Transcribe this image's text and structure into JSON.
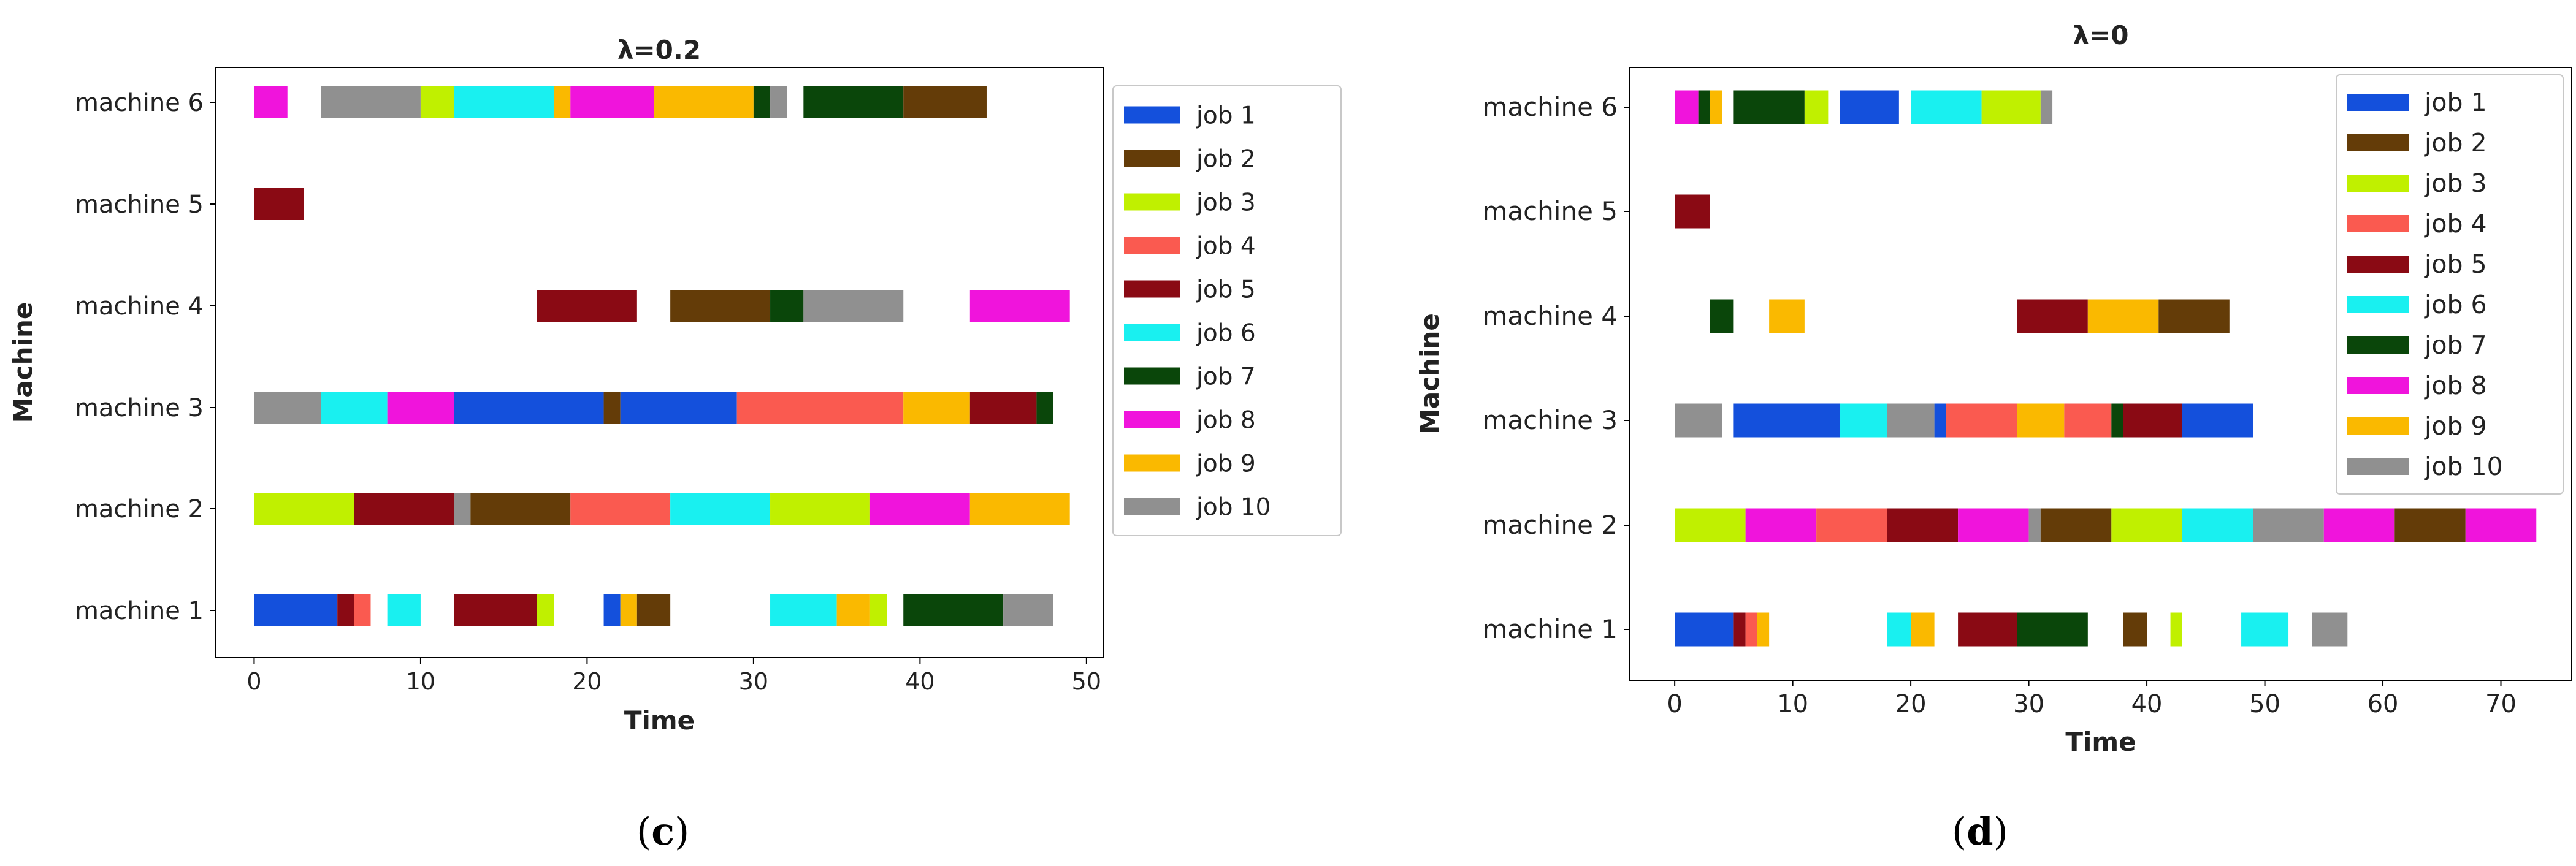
{
  "legend_entries": [
    "job 1",
    "job 2",
    "job 3",
    "job 4",
    "job 5",
    "job 6",
    "job 7",
    "job 8",
    "job 9",
    "job 10"
  ],
  "job_colors": {
    "job 1": "#1450dc",
    "job 2": "#643c08",
    "job 3": "#c0f000",
    "job 4": "#fa5a50",
    "job 5": "#8a0a14",
    "job 6": "#19f0f0",
    "job 7": "#0a460a",
    "job 8": "#f014dc",
    "job 9": "#fab900",
    "job 10": "#909090"
  },
  "captions": {
    "c": {
      "open": "(",
      "letter": "c",
      "close": ")"
    },
    "d": {
      "open": "(",
      "letter": "d",
      "close": ")"
    }
  },
  "chart_data": [
    {
      "type": "gantt",
      "title": "λ=0.2",
      "xlabel": "Time",
      "ylabel": "Machine",
      "xlim": [
        -2.3,
        51
      ],
      "xticks": [
        0,
        10,
        20,
        30,
        40,
        50
      ],
      "categories": [
        "machine 1",
        "machine 2",
        "machine 3",
        "machine 4",
        "machine 5",
        "machine 6"
      ],
      "legend_position": "outside-right",
      "bars": [
        {
          "machine": "machine 6",
          "job": "job 8",
          "start": 0,
          "end": 2
        },
        {
          "machine": "machine 6",
          "job": "job 10",
          "start": 4,
          "end": 10
        },
        {
          "machine": "machine 6",
          "job": "job 3",
          "start": 10,
          "end": 12
        },
        {
          "machine": "machine 6",
          "job": "job 6",
          "start": 12,
          "end": 18
        },
        {
          "machine": "machine 6",
          "job": "job 9",
          "start": 18,
          "end": 19
        },
        {
          "machine": "machine 6",
          "job": "job 8",
          "start": 19,
          "end": 24
        },
        {
          "machine": "machine 6",
          "job": "job 9",
          "start": 24,
          "end": 30
        },
        {
          "machine": "machine 6",
          "job": "job 7",
          "start": 30,
          "end": 31
        },
        {
          "machine": "machine 6",
          "job": "job 10",
          "start": 31,
          "end": 32
        },
        {
          "machine": "machine 6",
          "job": "job 7",
          "start": 33,
          "end": 39
        },
        {
          "machine": "machine 6",
          "job": "job 2",
          "start": 39,
          "end": 44
        },
        {
          "machine": "machine 5",
          "job": "job 5",
          "start": 0,
          "end": 3
        },
        {
          "machine": "machine 4",
          "job": "job 5",
          "start": 17,
          "end": 23
        },
        {
          "machine": "machine 4",
          "job": "job 2",
          "start": 25,
          "end": 31
        },
        {
          "machine": "machine 4",
          "job": "job 7",
          "start": 31,
          "end": 33
        },
        {
          "machine": "machine 4",
          "job": "job 10",
          "start": 33,
          "end": 39
        },
        {
          "machine": "machine 4",
          "job": "job 8",
          "start": 43,
          "end": 49
        },
        {
          "machine": "machine 3",
          "job": "job 10",
          "start": 0,
          "end": 4
        },
        {
          "machine": "machine 3",
          "job": "job 6",
          "start": 4,
          "end": 8
        },
        {
          "machine": "machine 3",
          "job": "job 8",
          "start": 8,
          "end": 12
        },
        {
          "machine": "machine 3",
          "job": "job 1",
          "start": 12,
          "end": 21
        },
        {
          "machine": "machine 3",
          "job": "job 2",
          "start": 21,
          "end": 22
        },
        {
          "machine": "machine 3",
          "job": "job 1",
          "start": 22,
          "end": 29
        },
        {
          "machine": "machine 3",
          "job": "job 4",
          "start": 29,
          "end": 39
        },
        {
          "machine": "machine 3",
          "job": "job 9",
          "start": 39,
          "end": 43
        },
        {
          "machine": "machine 3",
          "job": "job 5",
          "start": 43,
          "end": 47
        },
        {
          "machine": "machine 3",
          "job": "job 7",
          "start": 47,
          "end": 48
        },
        {
          "machine": "machine 2",
          "job": "job 3",
          "start": 0,
          "end": 6
        },
        {
          "machine": "machine 2",
          "job": "job 5",
          "start": 6,
          "end": 12
        },
        {
          "machine": "machine 2",
          "job": "job 10",
          "start": 12,
          "end": 13
        },
        {
          "machine": "machine 2",
          "job": "job 2",
          "start": 13,
          "end": 19
        },
        {
          "machine": "machine 2",
          "job": "job 4",
          "start": 19,
          "end": 25
        },
        {
          "machine": "machine 2",
          "job": "job 6",
          "start": 25,
          "end": 31
        },
        {
          "machine": "machine 2",
          "job": "job 3",
          "start": 31,
          "end": 37
        },
        {
          "machine": "machine 2",
          "job": "job 8",
          "start": 37,
          "end": 43
        },
        {
          "machine": "machine 2",
          "job": "job 9",
          "start": 43,
          "end": 49
        },
        {
          "machine": "machine 1",
          "job": "job 1",
          "start": 0,
          "end": 5
        },
        {
          "machine": "machine 1",
          "job": "job 5",
          "start": 5,
          "end": 6
        },
        {
          "machine": "machine 1",
          "job": "job 4",
          "start": 6,
          "end": 7
        },
        {
          "machine": "machine 1",
          "job": "job 6",
          "start": 8,
          "end": 10
        },
        {
          "machine": "machine 1",
          "job": "job 5",
          "start": 12,
          "end": 17
        },
        {
          "machine": "machine 1",
          "job": "job 3",
          "start": 17,
          "end": 18
        },
        {
          "machine": "machine 1",
          "job": "job 1",
          "start": 21,
          "end": 22
        },
        {
          "machine": "machine 1",
          "job": "job 9",
          "start": 22,
          "end": 23
        },
        {
          "machine": "machine 1",
          "job": "job 2",
          "start": 23,
          "end": 25
        },
        {
          "machine": "machine 1",
          "job": "job 6",
          "start": 31,
          "end": 35
        },
        {
          "machine": "machine 1",
          "job": "job 9",
          "start": 35,
          "end": 37
        },
        {
          "machine": "machine 1",
          "job": "job 3",
          "start": 37,
          "end": 38
        },
        {
          "machine": "machine 1",
          "job": "job 7",
          "start": 39,
          "end": 45
        },
        {
          "machine": "machine 1",
          "job": "job 10",
          "start": 45,
          "end": 48
        }
      ]
    },
    {
      "type": "gantt",
      "title": "λ=0",
      "xlabel": "Time",
      "ylabel": "Machine",
      "xlim": [
        -3.8,
        76
      ],
      "xticks": [
        0,
        10,
        20,
        30,
        40,
        50,
        60,
        70
      ],
      "categories": [
        "machine 1",
        "machine 2",
        "machine 3",
        "machine 4",
        "machine 5",
        "machine 6"
      ],
      "legend_position": "top-right",
      "bars": [
        {
          "machine": "machine 6",
          "job": "job 8",
          "start": 0,
          "end": 2
        },
        {
          "machine": "machine 6",
          "job": "job 7",
          "start": 2,
          "end": 3
        },
        {
          "machine": "machine 6",
          "job": "job 9",
          "start": 3,
          "end": 4
        },
        {
          "machine": "machine 6",
          "job": "job 7",
          "start": 5,
          "end": 11
        },
        {
          "machine": "machine 6",
          "job": "job 3",
          "start": 11,
          "end": 13
        },
        {
          "machine": "machine 6",
          "job": "job 1",
          "start": 14,
          "end": 19
        },
        {
          "machine": "machine 6",
          "job": "job 6",
          "start": 20,
          "end": 26
        },
        {
          "machine": "machine 6",
          "job": "job 3",
          "start": 26,
          "end": 31
        },
        {
          "machine": "machine 6",
          "job": "job 10",
          "start": 31,
          "end": 32
        },
        {
          "machine": "machine 5",
          "job": "job 5",
          "start": 0,
          "end": 3
        },
        {
          "machine": "machine 4",
          "job": "job 7",
          "start": 3,
          "end": 5
        },
        {
          "machine": "machine 4",
          "job": "job 9",
          "start": 8,
          "end": 11
        },
        {
          "machine": "machine 4",
          "job": "job 5",
          "start": 29,
          "end": 35
        },
        {
          "machine": "machine 4",
          "job": "job 9",
          "start": 35,
          "end": 41
        },
        {
          "machine": "machine 4",
          "job": "job 2",
          "start": 41,
          "end": 47
        },
        {
          "machine": "machine 3",
          "job": "job 10",
          "start": 0,
          "end": 4
        },
        {
          "machine": "machine 3",
          "job": "job 1",
          "start": 5,
          "end": 14
        },
        {
          "machine": "machine 3",
          "job": "job 6",
          "start": 14,
          "end": 18
        },
        {
          "machine": "machine 3",
          "job": "job 10",
          "start": 18,
          "end": 22
        },
        {
          "machine": "machine 3",
          "job": "job 1",
          "start": 22,
          "end": 23
        },
        {
          "machine": "machine 3",
          "job": "job 4",
          "start": 23,
          "end": 29
        },
        {
          "machine": "machine 3",
          "job": "job 9",
          "start": 29,
          "end": 33
        },
        {
          "machine": "machine 3",
          "job": "job 4",
          "start": 33,
          "end": 37
        },
        {
          "machine": "machine 3",
          "job": "job 7",
          "start": 37,
          "end": 38
        },
        {
          "machine": "machine 3",
          "job": "job 5",
          "start": 38,
          "end": 39
        },
        {
          "machine": "machine 3",
          "job": "job 5",
          "start": 39,
          "end": 43
        },
        {
          "machine": "machine 3",
          "job": "job 1",
          "start": 43,
          "end": 49
        },
        {
          "machine": "machine 2",
          "job": "job 3",
          "start": 0,
          "end": 6
        },
        {
          "machine": "machine 2",
          "job": "job 8",
          "start": 6,
          "end": 12
        },
        {
          "machine": "machine 2",
          "job": "job 4",
          "start": 12,
          "end": 18
        },
        {
          "machine": "machine 2",
          "job": "job 5",
          "start": 18,
          "end": 24
        },
        {
          "machine": "machine 2",
          "job": "job 8",
          "start": 24,
          "end": 30
        },
        {
          "machine": "machine 2",
          "job": "job 10",
          "start": 30,
          "end": 31
        },
        {
          "machine": "machine 2",
          "job": "job 2",
          "start": 31,
          "end": 37
        },
        {
          "machine": "machine 2",
          "job": "job 3",
          "start": 37,
          "end": 43
        },
        {
          "machine": "machine 2",
          "job": "job 6",
          "start": 43,
          "end": 49
        },
        {
          "machine": "machine 2",
          "job": "job 10",
          "start": 49,
          "end": 55
        },
        {
          "machine": "machine 2",
          "job": "job 8",
          "start": 55,
          "end": 61
        },
        {
          "machine": "machine 2",
          "job": "job 2",
          "start": 61,
          "end": 67
        },
        {
          "machine": "machine 2",
          "job": "job 8",
          "start": 67,
          "end": 73
        },
        {
          "machine": "machine 1",
          "job": "job 1",
          "start": 0,
          "end": 5
        },
        {
          "machine": "machine 1",
          "job": "job 5",
          "start": 5,
          "end": 6
        },
        {
          "machine": "machine 1",
          "job": "job 4",
          "start": 6,
          "end": 7
        },
        {
          "machine": "machine 1",
          "job": "job 9",
          "start": 7,
          "end": 8
        },
        {
          "machine": "machine 1",
          "job": "job 6",
          "start": 18,
          "end": 20
        },
        {
          "machine": "machine 1",
          "job": "job 9",
          "start": 20,
          "end": 22
        },
        {
          "machine": "machine 1",
          "job": "job 5",
          "start": 24,
          "end": 29
        },
        {
          "machine": "machine 1",
          "job": "job 7",
          "start": 29,
          "end": 35
        },
        {
          "machine": "machine 1",
          "job": "job 2",
          "start": 38,
          "end": 40
        },
        {
          "machine": "machine 1",
          "job": "job 3",
          "start": 42,
          "end": 43
        },
        {
          "machine": "machine 1",
          "job": "job 6",
          "start": 48,
          "end": 52
        },
        {
          "machine": "machine 1",
          "job": "job 10",
          "start": 54,
          "end": 57
        }
      ]
    }
  ]
}
